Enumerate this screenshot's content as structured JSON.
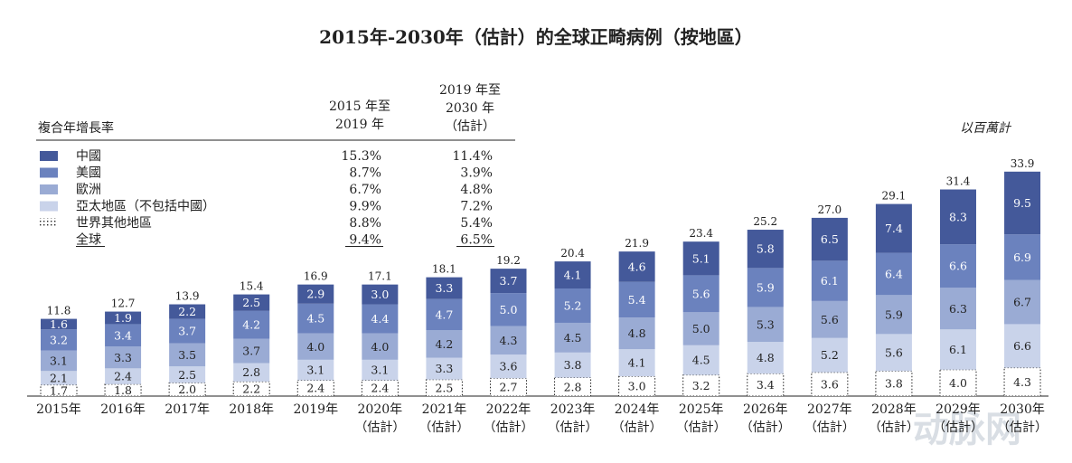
{
  "title": "2015年-2030年（估計）的全球正畸病例（按地區）",
  "unit_label": "以百萬計",
  "legend_table": {
    "header_label": "複合年增長率",
    "col1_header": [
      "2015 年至",
      "2019 年"
    ],
    "col2_header": [
      "2019 年至",
      "2030 年",
      "（估計）"
    ],
    "rows": [
      {
        "label": "中國",
        "c1": "15.3%",
        "c2": "11.4%",
        "color": "#44599a"
      },
      {
        "label": "美國",
        "c1": "8.7%",
        "c2": "3.9%",
        "color": "#6b82be"
      },
      {
        "label": "歐洲",
        "c1": "6.7%",
        "c2": "4.8%",
        "color": "#9aabd4"
      },
      {
        "label": "亞太地區（不包括中國）",
        "c1": "9.9%",
        "c2": "7.2%",
        "color": "#c9d3ea"
      },
      {
        "label": "世界其他地區",
        "c1": "8.8%",
        "c2": "5.4%",
        "color": "dotted"
      },
      {
        "label": "全球",
        "c1": "9.4%",
        "c2": "6.5%",
        "color": "none"
      }
    ]
  },
  "watermark": "动脉网",
  "chart_data": {
    "type": "bar",
    "stacked": true,
    "categories": [
      "2015年",
      "2016年",
      "2017年",
      "2018年",
      "2019年",
      "2020年",
      "2021年",
      "2022年",
      "2023年",
      "2024年",
      "2025年",
      "2026年",
      "2027年",
      "2028年",
      "2029年",
      "2030年"
    ],
    "category_sublabels": [
      "",
      "",
      "",
      "",
      "",
      "（估計）",
      "（估計）",
      "（估計）",
      "（估計）",
      "（估計）",
      "（估計）",
      "（估計）",
      "（估計）",
      "（估計）",
      "（估計）",
      "（估計）"
    ],
    "series": [
      {
        "name": "世界其他地區",
        "values": [
          1.7,
          1.8,
          2.0,
          2.2,
          2.4,
          2.4,
          2.5,
          2.7,
          2.8,
          3.0,
          3.2,
          3.4,
          3.6,
          3.8,
          4.0,
          4.3
        ]
      },
      {
        "name": "亞太地區（不包括中國）",
        "values": [
          2.1,
          2.4,
          2.5,
          2.8,
          3.1,
          3.1,
          3.3,
          3.6,
          3.8,
          4.1,
          4.5,
          4.8,
          5.2,
          5.6,
          6.1,
          6.6
        ]
      },
      {
        "name": "歐洲",
        "values": [
          3.1,
          3.3,
          3.5,
          3.7,
          4.0,
          4.0,
          4.2,
          4.3,
          4.5,
          4.8,
          5.0,
          5.3,
          5.6,
          5.9,
          6.3,
          6.7
        ]
      },
      {
        "name": "美國",
        "values": [
          3.2,
          3.4,
          3.7,
          4.2,
          4.5,
          4.4,
          4.7,
          5.0,
          5.2,
          5.4,
          5.6,
          5.9,
          6.1,
          6.4,
          6.6,
          6.9
        ]
      },
      {
        "name": "中國",
        "values": [
          1.6,
          1.9,
          2.2,
          2.5,
          2.9,
          3.0,
          3.3,
          3.7,
          4.1,
          4.6,
          5.1,
          5.8,
          6.5,
          7.4,
          8.3,
          9.5
        ]
      }
    ],
    "totals": [
      11.8,
      12.7,
      13.9,
      15.4,
      16.9,
      17.1,
      18.1,
      19.2,
      20.4,
      21.9,
      23.4,
      25.2,
      27.0,
      29.1,
      31.4,
      33.9
    ],
    "ylim": [
      0,
      34
    ]
  }
}
